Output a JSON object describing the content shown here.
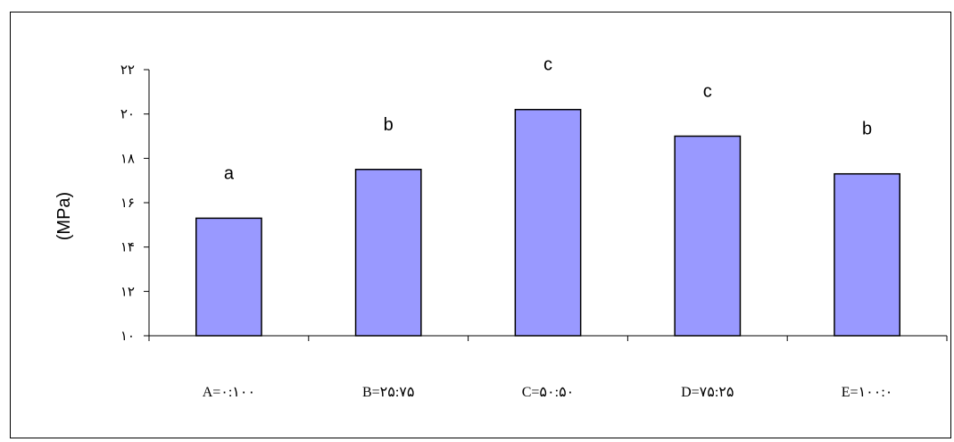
{
  "chart_data": {
    "type": "bar",
    "categories": [
      "A=۰:۱۰۰",
      "B=۲۵:۷۵",
      "C=۵۰:۵۰",
      "D=۷۵:۲۵",
      "E=۱۰۰:۰"
    ],
    "values": [
      15.3,
      17.5,
      20.2,
      19.0,
      17.3
    ],
    "data_labels": [
      "a",
      "b",
      "c",
      "c",
      "b"
    ],
    "ylabel": "(MPa)",
    "ylim": [
      10,
      22
    ],
    "yticks": [
      10,
      12,
      14,
      16,
      18,
      20,
      22
    ],
    "ytick_labels": [
      "۱۰",
      "۱۲",
      "۱۴",
      "۱۶",
      "۱۸",
      "۲۰",
      "۲۲"
    ],
    "grid": false,
    "legend": "none",
    "bar_color": "#9999ff",
    "bar_edge_color": "#000000"
  }
}
